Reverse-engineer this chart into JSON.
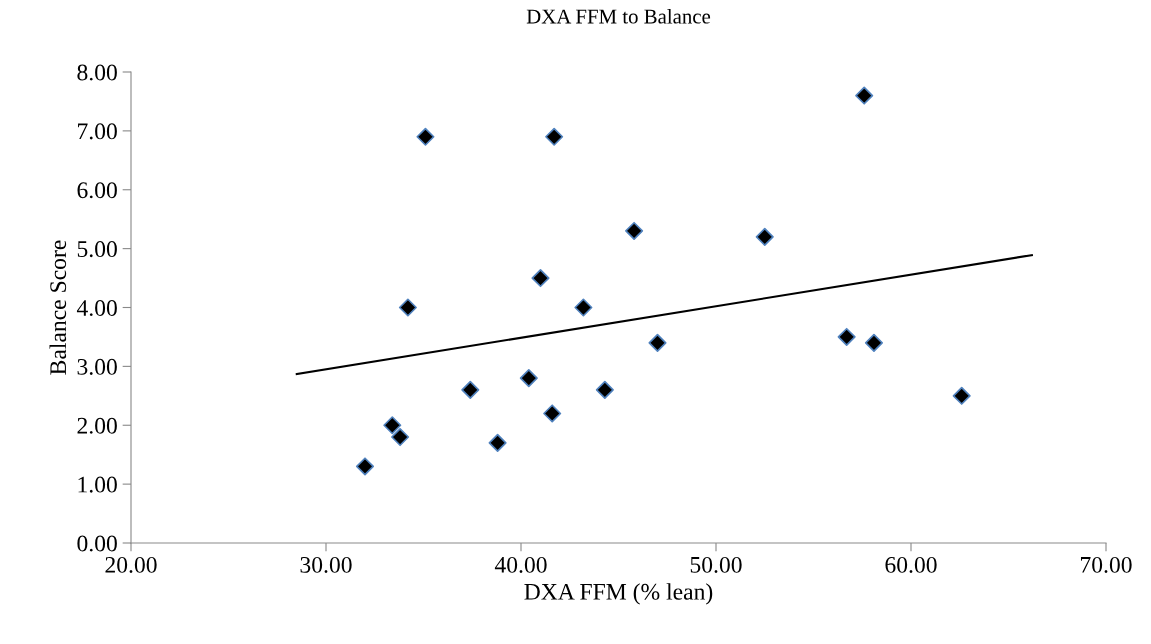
{
  "chart_data": {
    "type": "scatter",
    "title": "DXA FFM to Balance",
    "xlabel": "DXA FFM (% lean)",
    "ylabel": "Balance Score",
    "xlim": [
      20,
      70
    ],
    "xticks": [
      {
        "value": 20,
        "label": "20.00"
      },
      {
        "value": 30,
        "label": "30.00"
      },
      {
        "value": 40,
        "label": "40.00"
      },
      {
        "value": 50,
        "label": "50.00"
      },
      {
        "value": 60,
        "label": "60.00"
      },
      {
        "value": 70,
        "label": "70.00"
      }
    ],
    "ylim": [
      0,
      8
    ],
    "yticks": [
      {
        "value": 0,
        "label": "0.00"
      },
      {
        "value": 1,
        "label": "1.00"
      },
      {
        "value": 2,
        "label": "2.00"
      },
      {
        "value": 3,
        "label": "3.00"
      },
      {
        "value": 4,
        "label": "4.00"
      },
      {
        "value": 5,
        "label": "5.00"
      },
      {
        "value": 6,
        "label": "6.00"
      },
      {
        "value": 7,
        "label": "7.00"
      },
      {
        "value": 8,
        "label": "8.00"
      }
    ],
    "grid": false,
    "legend": false,
    "marker": "diamond",
    "series": [
      {
        "color": "#000000",
        "x": [
          32.0,
          33.4,
          33.8,
          34.2,
          35.1,
          37.4,
          38.8,
          40.4,
          41.0,
          41.6,
          41.7,
          43.2,
          44.3,
          45.8,
          47.0,
          52.5,
          56.7,
          57.6,
          58.1,
          62.6
        ],
        "values": [
          1.3,
          2.0,
          1.8,
          4.0,
          6.9,
          2.6,
          1.7,
          2.8,
          4.5,
          2.2,
          6.9,
          4.0,
          2.6,
          5.3,
          3.4,
          5.2,
          3.5,
          7.6,
          3.4,
          2.5
        ]
      },
      {
        "type": "line",
        "color": "#000000",
        "marker": "none",
        "line_style": "solid",
        "x": [
          28.5,
          66.2
        ],
        "values": [
          2.87,
          4.89
        ]
      }
    ]
  }
}
